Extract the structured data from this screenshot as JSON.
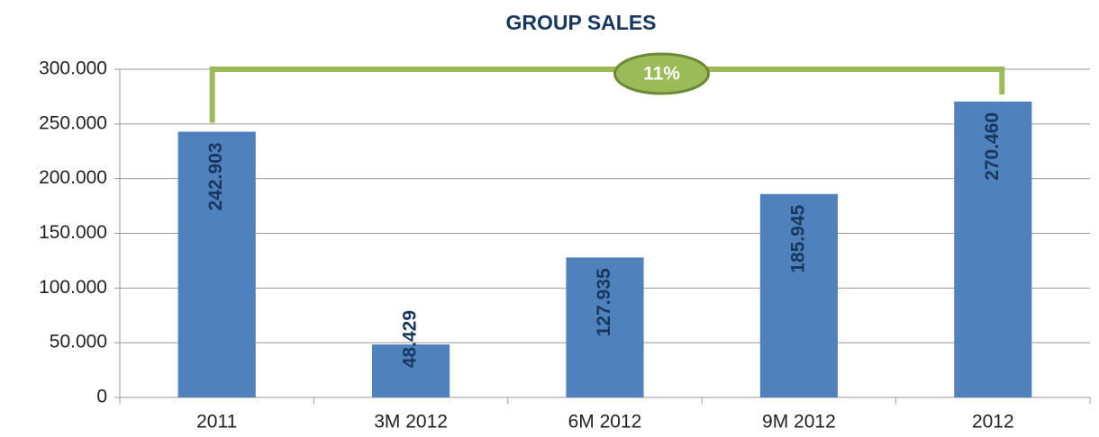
{
  "chart_data": {
    "type": "bar",
    "title": "GROUP SALES",
    "categories": [
      "2011",
      "3M 2012",
      "6M 2012",
      "9M 2012",
      "2012"
    ],
    "values": [
      242903,
      48429,
      127935,
      185945,
      270460
    ],
    "value_labels": [
      "242.903",
      "48.429",
      "127.935",
      "185.945",
      "270.460"
    ],
    "color": "#4f81bd",
    "ylim": [
      0,
      300000
    ],
    "yticks": [
      {
        "value": 0,
        "label": "0"
      },
      {
        "value": 50000,
        "label": "50.000"
      },
      {
        "value": 100000,
        "label": "100.000"
      },
      {
        "value": 150000,
        "label": "150.000"
      },
      {
        "value": 200000,
        "label": "200.000"
      },
      {
        "value": 250000,
        "label": "250.000"
      },
      {
        "value": 300000,
        "label": "300.000"
      }
    ],
    "grid": true,
    "annotation": "11%"
  }
}
